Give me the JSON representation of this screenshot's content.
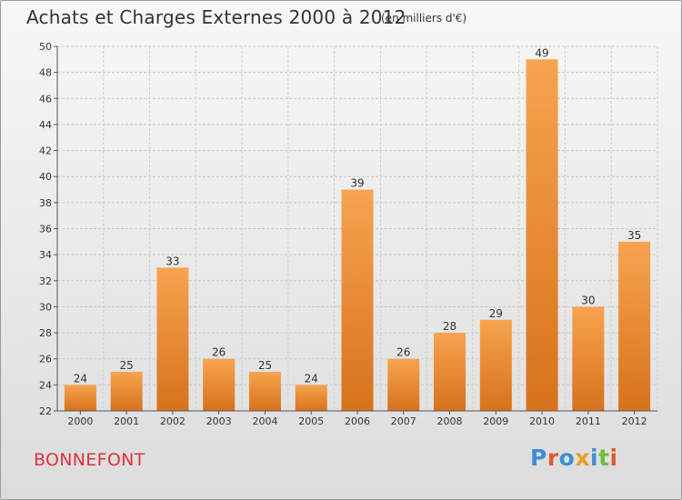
{
  "header": {
    "title": "Achats et Charges Externes 2000 à 2012",
    "unit": "(en milliers d'€)"
  },
  "commune": "BONNEFONT",
  "logo": {
    "text": "Proxiti",
    "letter_colors": [
      "#3d8fd6",
      "#e05a2b",
      "#3d8fd6",
      "#e8a020",
      "#3d8fd6",
      "#6abf3a",
      "#e05a2b"
    ]
  },
  "chart_data": {
    "type": "bar",
    "title": "Achats et Charges Externes 2000 à 2012",
    "subtitle": "(en milliers d'€)",
    "categories": [
      "2000",
      "2001",
      "2002",
      "2003",
      "2004",
      "2005",
      "2006",
      "2007",
      "2008",
      "2009",
      "2010",
      "2011",
      "2012"
    ],
    "values": [
      24,
      25,
      33,
      26,
      25,
      24,
      39,
      26,
      28,
      29,
      49,
      30,
      35
    ],
    "ylim": [
      22,
      50
    ],
    "yticks": [
      22,
      24,
      26,
      28,
      30,
      32,
      34,
      36,
      38,
      40,
      42,
      44,
      46,
      48,
      50
    ],
    "grid": true,
    "bar_color": "#f0953a",
    "xlabel": "",
    "ylabel": ""
  }
}
